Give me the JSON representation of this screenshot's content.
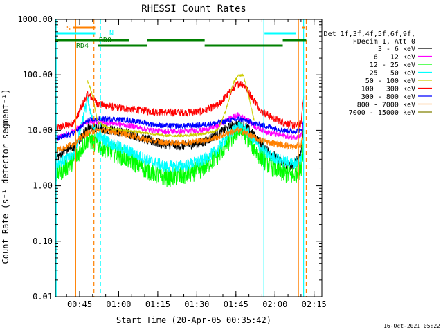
{
  "chart_data": {
    "type": "line",
    "title": "RHESSI Count Rates",
    "xlabel": "Start Time (20-Apr-05 00:35:42)",
    "ylabel": "Count Rate (s⁻¹ detector segment⁻¹)",
    "y_scale": "log",
    "ylim": [
      0.01,
      1000
    ],
    "y_ticks": [
      {
        "value": 0.01,
        "label": "0.01"
      },
      {
        "value": 0.1,
        "label": "0.10"
      },
      {
        "value": 1,
        "label": "1.00"
      },
      {
        "value": 10,
        "label": "10.00"
      },
      {
        "value": 100,
        "label": "100.00"
      },
      {
        "value": 1000,
        "label": "1000.00"
      }
    ],
    "xlim": [
      "00:35:42",
      "02:18:00"
    ],
    "x_ticks": [
      "00:45",
      "01:00",
      "01:15",
      "01:30",
      "01:45",
      "02:00",
      "02:15"
    ],
    "legend_position": "top-right",
    "legend_header": [
      "Det 1f,3f,4f,5f,6f,9f,",
      "FDecim 1, Att 0"
    ],
    "series": [
      {
        "name": "3 - 6 keV",
        "color": "#000000",
        "x": [
          "00:36",
          "00:40",
          "00:43",
          "00:48",
          "00:52",
          "00:58",
          "01:05",
          "01:12",
          "01:18",
          "01:25",
          "01:32",
          "01:38",
          "01:42",
          "01:46",
          "01:49",
          "01:53",
          "01:58",
          "02:03",
          "02:07",
          "02:10",
          "02:11"
        ],
        "y": [
          3.2,
          4.5,
          5.0,
          11,
          11,
          10,
          8.5,
          6.5,
          5.5,
          5.3,
          6,
          8.5,
          11,
          13,
          11.5,
          7,
          4,
          2.5,
          2.2,
          4,
          12
        ]
      },
      {
        "name": "6 - 12 keV",
        "color": "#ff00ff",
        "x": [
          "00:36",
          "00:40",
          "00:43",
          "00:48",
          "00:52",
          "00:58",
          "01:05",
          "01:12",
          "01:18",
          "01:25",
          "01:32",
          "01:38",
          "01:42",
          "01:46",
          "01:49",
          "01:53",
          "01:58",
          "02:03",
          "02:07",
          "02:10",
          "02:11"
        ],
        "y": [
          7,
          8.5,
          10,
          14,
          14,
          13.5,
          12,
          10,
          9.5,
          9.5,
          10,
          12,
          16,
          19,
          16,
          11,
          9,
          8,
          7.5,
          8,
          14
        ]
      },
      {
        "name": "12 - 25 keV",
        "color": "#00ff00",
        "x": [
          "00:36",
          "00:40",
          "00:43",
          "00:48",
          "00:52",
          "00:58",
          "01:05",
          "01:12",
          "01:18",
          "01:25",
          "01:32",
          "01:38",
          "01:42",
          "01:46",
          "01:49",
          "01:53",
          "01:58",
          "02:03",
          "02:07",
          "02:10",
          "02:11"
        ],
        "y": [
          1.6,
          2.2,
          3.0,
          7,
          5.5,
          4,
          2.8,
          1.8,
          1.4,
          1.5,
          2,
          3.5,
          6,
          10,
          8,
          4,
          2.3,
          1.7,
          1.5,
          2,
          6
        ]
      },
      {
        "name": "25 - 50 keV",
        "color": "#00ffff",
        "x": [
          "00:36",
          "00:40",
          "00:43",
          "00:48",
          "00:50",
          "00:52",
          "00:58",
          "01:05",
          "01:12",
          "01:18",
          "01:25",
          "01:32",
          "01:38",
          "01:42",
          "01:46",
          "01:49",
          "01:53",
          "01:58",
          "02:03",
          "02:07",
          "02:10",
          "02:11"
        ],
        "y": [
          2.5,
          3.0,
          3.8,
          35,
          14,
          8,
          5.5,
          4,
          2.8,
          2.2,
          2.3,
          2.8,
          4.5,
          8,
          12,
          10,
          5.5,
          3.5,
          2.8,
          2.5,
          3,
          8
        ]
      },
      {
        "name": "50 - 100 keV",
        "color": "#cccc00",
        "x": [
          "00:48",
          "00:49",
          "00:50",
          "00:52",
          "00:56",
          "01:02",
          "01:10",
          "01:18",
          "01:25",
          "01:32",
          "01:38",
          "01:41",
          "01:44",
          "01:46",
          "01:48",
          "01:50",
          "01:52"
        ],
        "y": [
          80,
          60,
          40,
          14,
          11,
          10,
          9,
          8,
          8,
          8.5,
          10,
          22,
          70,
          100,
          95,
          40,
          15
        ]
      },
      {
        "name": "100 - 300 keV",
        "color": "#ff0000",
        "x": [
          "00:36",
          "00:40",
          "00:43",
          "00:48",
          "00:52",
          "00:58",
          "01:05",
          "01:12",
          "01:18",
          "01:25",
          "01:32",
          "01:38",
          "01:42",
          "01:46",
          "01:48",
          "01:51",
          "01:55",
          "02:00",
          "02:05",
          "02:08",
          "02:10",
          "02:11"
        ],
        "y": [
          11,
          12,
          14,
          45,
          30,
          26,
          24,
          22,
          21,
          21,
          22,
          28,
          45,
          70,
          68,
          40,
          22,
          16,
          13,
          12,
          13,
          45
        ]
      },
      {
        "name": "300 - 800 keV",
        "color": "#0000ff",
        "x": [
          "00:36",
          "00:40",
          "00:43",
          "00:48",
          "00:52",
          "00:58",
          "01:05",
          "01:12",
          "01:18",
          "01:25",
          "01:32",
          "01:38",
          "01:42",
          "01:46",
          "01:49",
          "01:53",
          "01:58",
          "02:03",
          "02:07",
          "02:10",
          "02:11"
        ],
        "y": [
          7,
          8,
          9,
          15,
          16,
          16,
          15,
          13,
          12,
          12,
          12.5,
          13.5,
          15,
          16,
          15,
          13,
          11.5,
          10,
          9.5,
          10,
          14
        ]
      },
      {
        "name": "800 - 7000 keV",
        "color": "#ff8000",
        "x": [
          "00:36",
          "00:40",
          "00:43",
          "00:48",
          "00:52",
          "00:58",
          "01:05",
          "01:12",
          "01:18",
          "01:25",
          "01:32",
          "01:38",
          "01:42",
          "01:46",
          "01:49",
          "01:53",
          "01:58",
          "02:03",
          "02:07",
          "02:10",
          "02:11"
        ],
        "y": [
          4.5,
          5,
          6,
          9,
          10,
          9.5,
          8,
          6.5,
          6,
          6,
          6.5,
          7.5,
          9,
          10,
          9,
          7,
          6,
          5.5,
          5,
          5.5,
          9
        ]
      },
      {
        "name": "7000 - 15000 keV",
        "color": "#808000",
        "x": [],
        "y": []
      }
    ],
    "annotations": [
      {
        "text": "S",
        "color": "#ff8000"
      },
      {
        "text": "N",
        "color": "#00ffff"
      },
      {
        "text": "RD4",
        "color": "#008000"
      },
      {
        "text": "RD0",
        "color": "#008000"
      }
    ],
    "state_bars": [
      {
        "state": "S",
        "color": "#ff8000",
        "segments": [
          [
            "00:42:30",
            "00:51:00"
          ],
          [
            "02:10:30",
            "02:11:30"
          ]
        ]
      },
      {
        "state": "N",
        "color": "#00ffff",
        "segments": [
          [
            "00:35:42",
            "00:51:00"
          ],
          [
            "01:56:00",
            "02:08:00"
          ]
        ]
      },
      {
        "state": "day-upper",
        "color": "#008000",
        "segments": [
          [
            "00:35:42",
            "01:04:00"
          ],
          [
            "01:11:00",
            "01:33:00"
          ],
          [
            "02:03:00",
            "02:12:00"
          ]
        ]
      },
      {
        "state": "day-lower",
        "color": "#008000",
        "segments": [
          [
            "00:52:00",
            "01:11:00"
          ],
          [
            "01:33:00",
            "02:03:00"
          ]
        ]
      }
    ],
    "vlines": [
      {
        "time": "00:43:30",
        "color": "#ff8000",
        "style": "solid"
      },
      {
        "time": "00:50:30",
        "color": "#ff8000",
        "style": "dashed"
      },
      {
        "time": "00:53:00",
        "color": "#00ffff",
        "style": "dashed"
      },
      {
        "time": "01:55:45",
        "color": "#00ffff",
        "style": "solid"
      },
      {
        "time": "02:09:00",
        "color": "#ff8000",
        "style": "solid"
      },
      {
        "time": "02:11:00",
        "color": "#00ffff",
        "style": "solid"
      },
      {
        "time": "02:12:00",
        "color": "#ff8000",
        "style": "dashed"
      },
      {
        "time": "00:36:00",
        "color": "#00ffff",
        "style": "solid"
      }
    ],
    "footer_timestamp": "16-Oct-2021 05:22"
  }
}
